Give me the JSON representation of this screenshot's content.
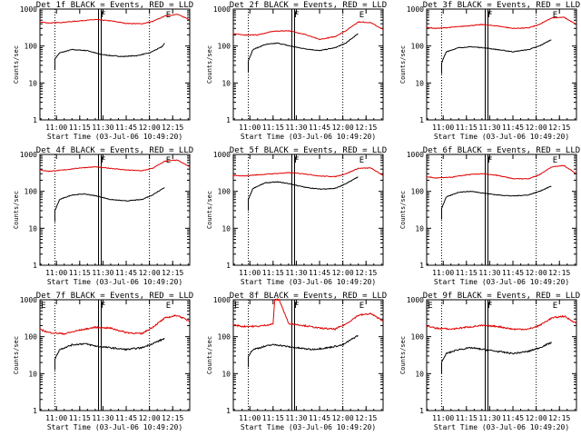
{
  "figure": {
    "x_axis_title": "Start Time (03-Jul-06 10:49:20)",
    "y_axis_title": "Counts/sec",
    "x_ticks": [
      "11:00",
      "11:15",
      "11:30",
      "11:45",
      "12:00",
      "12:15"
    ],
    "y_ticks": [
      "1",
      "10",
      "100",
      "1000"
    ]
  },
  "chart_data": [
    {
      "type": "line",
      "title": "Det 1f BLACK = Events, RED = LLD",
      "y_scale": "log",
      "ylim": [
        1,
        1000
      ],
      "xlim": [
        "10:49:20",
        "12:26"
      ],
      "grid": false,
      "markers": [
        "F",
        "E"
      ],
      "series": [
        {
          "name": "Events",
          "color": "#000000",
          "x": [
            "10:59",
            "11:02",
            "11:10",
            "11:20",
            "11:28",
            "11:35",
            "11:43",
            "11:52",
            "12:00",
            "12:08",
            "12:10"
          ],
          "y": [
            45,
            65,
            80,
            75,
            60,
            55,
            52,
            55,
            65,
            95,
            120
          ]
        },
        {
          "name": "LLD",
          "color": "#ff0000",
          "x": [
            "10:49",
            "10:55",
            "11:05",
            "11:15",
            "11:25",
            "11:35",
            "11:45",
            "11:55",
            "12:02",
            "12:10",
            "12:18",
            "12:26"
          ],
          "y": [
            450,
            420,
            440,
            480,
            520,
            480,
            410,
            400,
            460,
            650,
            720,
            520
          ]
        }
      ]
    },
    {
      "type": "line",
      "title": "Det 2f BLACK = Events, RED = LLD",
      "y_scale": "log",
      "ylim": [
        1,
        1000
      ],
      "xlim": [
        "10:49:20",
        "12:26"
      ],
      "grid": false,
      "markers": [
        "F",
        "E"
      ],
      "series": [
        {
          "name": "Events",
          "color": "#000000",
          "x": [
            "10:59",
            "11:02",
            "11:10",
            "11:18",
            "11:26",
            "11:35",
            "11:45",
            "11:55",
            "12:02",
            "12:10"
          ],
          "y": [
            40,
            80,
            110,
            120,
            100,
            85,
            75,
            90,
            120,
            220
          ]
        },
        {
          "name": "LLD",
          "color": "#ff0000",
          "x": [
            "10:49",
            "10:55",
            "11:05",
            "11:15",
            "11:25",
            "11:35",
            "11:45",
            "11:55",
            "12:02",
            "12:10",
            "12:18",
            "12:26"
          ],
          "y": [
            220,
            200,
            200,
            250,
            260,
            210,
            150,
            180,
            260,
            450,
            430,
            280
          ]
        }
      ]
    },
    {
      "type": "line",
      "title": "Det 3f BLACK = Events, RED = LLD",
      "y_scale": "log",
      "ylim": [
        1,
        1000
      ],
      "xlim": [
        "10:49:20",
        "12:26"
      ],
      "grid": false,
      "markers": [
        "F",
        "E"
      ],
      "series": [
        {
          "name": "Events",
          "color": "#000000",
          "x": [
            "10:59",
            "11:02",
            "11:10",
            "11:18",
            "11:26",
            "11:35",
            "11:45",
            "11:55",
            "12:02",
            "12:10"
          ],
          "y": [
            35,
            70,
            90,
            95,
            90,
            80,
            70,
            80,
            100,
            150
          ]
        },
        {
          "name": "LLD",
          "color": "#ff0000",
          "x": [
            "10:49",
            "10:55",
            "11:05",
            "11:15",
            "11:25",
            "11:35",
            "11:45",
            "11:55",
            "12:02",
            "12:10",
            "12:18",
            "12:26"
          ],
          "y": [
            320,
            300,
            320,
            350,
            380,
            350,
            300,
            310,
            380,
            580,
            600,
            380
          ]
        }
      ]
    },
    {
      "type": "line",
      "title": "Det 4f BLACK = Events, RED = LLD",
      "y_scale": "log",
      "ylim": [
        1,
        1000
      ],
      "xlim": [
        "10:49:20",
        "12:26"
      ],
      "grid": false,
      "markers": [
        "F",
        "E"
      ],
      "series": [
        {
          "name": "Events",
          "color": "#000000",
          "x": [
            "10:59",
            "11:02",
            "11:10",
            "11:18",
            "11:26",
            "11:35",
            "11:45",
            "11:55",
            "12:02",
            "12:10"
          ],
          "y": [
            30,
            60,
            80,
            85,
            75,
            60,
            55,
            60,
            80,
            130
          ]
        },
        {
          "name": "LLD",
          "color": "#ff0000",
          "x": [
            "10:49",
            "10:55",
            "11:05",
            "11:15",
            "11:25",
            "11:35",
            "11:45",
            "11:55",
            "12:02",
            "12:10",
            "12:18",
            "12:26"
          ],
          "y": [
            380,
            350,
            380,
            430,
            460,
            420,
            380,
            360,
            420,
            660,
            700,
            460
          ]
        }
      ]
    },
    {
      "type": "line",
      "title": "Det 5f BLACK = Events, RED = LLD",
      "y_scale": "log",
      "ylim": [
        1,
        1000
      ],
      "xlim": [
        "10:49:20",
        "12:26"
      ],
      "grid": false,
      "markers": [
        "F",
        "E"
      ],
      "series": [
        {
          "name": "Events",
          "color": "#000000",
          "x": [
            "10:59",
            "11:02",
            "11:10",
            "11:18",
            "11:26",
            "11:35",
            "11:45",
            "11:55",
            "12:02",
            "12:10"
          ],
          "y": [
            60,
            120,
            170,
            180,
            160,
            130,
            115,
            120,
            160,
            250
          ]
        },
        {
          "name": "LLD",
          "color": "#ff0000",
          "x": [
            "10:49",
            "10:55",
            "11:05",
            "11:15",
            "11:25",
            "11:35",
            "11:45",
            "11:55",
            "12:02",
            "12:10",
            "12:18",
            "12:26"
          ],
          "y": [
            270,
            260,
            280,
            300,
            320,
            300,
            260,
            250,
            300,
            420,
            430,
            270
          ]
        }
      ]
    },
    {
      "type": "line",
      "title": "Det 6f BLACK = Events, RED = LLD",
      "y_scale": "log",
      "ylim": [
        1,
        1000
      ],
      "xlim": [
        "10:49:20",
        "12:26"
      ],
      "grid": false,
      "markers": [
        "F",
        "E"
      ],
      "series": [
        {
          "name": "Events",
          "color": "#000000",
          "x": [
            "10:59",
            "11:02",
            "11:10",
            "11:18",
            "11:26",
            "11:35",
            "11:45",
            "11:55",
            "12:02",
            "12:10"
          ],
          "y": [
            35,
            70,
            95,
            100,
            90,
            80,
            75,
            80,
            100,
            140
          ]
        },
        {
          "name": "LLD",
          "color": "#ff0000",
          "x": [
            "10:49",
            "10:55",
            "11:05",
            "11:15",
            "11:25",
            "11:35",
            "11:45",
            "11:55",
            "12:02",
            "12:10",
            "12:18",
            "12:26"
          ],
          "y": [
            250,
            230,
            240,
            280,
            300,
            270,
            220,
            220,
            280,
            460,
            500,
            300
          ]
        }
      ]
    },
    {
      "type": "line",
      "title": "Det 7f BLACK = Events, RED = LLD",
      "y_scale": "log",
      "ylim": [
        1,
        1000
      ],
      "xlim": [
        "10:49:20",
        "12:26"
      ],
      "grid": false,
      "markers": [
        "E",
        "F",
        "E"
      ],
      "series": [
        {
          "name": "Events",
          "color": "#000000",
          "x": [
            "10:59",
            "11:02",
            "11:10",
            "11:18",
            "11:26",
            "11:35",
            "11:45",
            "11:55",
            "12:02",
            "12:10"
          ],
          "y": [
            25,
            45,
            60,
            65,
            55,
            50,
            45,
            50,
            65,
            90
          ]
        },
        {
          "name": "LLD",
          "color": "#ff0000",
          "x": [
            "10:49",
            "10:55",
            "11:05",
            "11:15",
            "11:25",
            "11:35",
            "11:45",
            "11:55",
            "12:02",
            "12:10",
            "12:18",
            "12:26"
          ],
          "y": [
            160,
            130,
            120,
            150,
            180,
            170,
            130,
            120,
            180,
            320,
            380,
            260
          ]
        }
      ]
    },
    {
      "type": "line",
      "title": "Det 8f BLACK = Events, RED = LLD",
      "y_scale": "log",
      "ylim": [
        1,
        1000
      ],
      "xlim": [
        "10:49:20",
        "12:26"
      ],
      "grid": false,
      "markers": [
        "E",
        "F",
        "E"
      ],
      "series": [
        {
          "name": "Events",
          "color": "#000000",
          "x": [
            "10:59",
            "11:02",
            "11:10",
            "11:14",
            "11:18",
            "11:23",
            "11:30",
            "11:40",
            "11:50",
            "12:00",
            "12:10"
          ],
          "y": [
            30,
            45,
            55,
            60,
            60,
            55,
            50,
            45,
            50,
            60,
            110
          ]
        },
        {
          "name": "LLD",
          "color": "#ff0000",
          "x": [
            "10:49",
            "10:55",
            "11:05",
            "11:15",
            "11:16",
            "11:19",
            "11:25",
            "11:35",
            "11:45",
            "11:55",
            "12:02",
            "12:10",
            "12:18",
            "12:26"
          ],
          "y": [
            210,
            190,
            190,
            220,
            1000,
            1000,
            230,
            200,
            170,
            160,
            220,
            380,
            420,
            270
          ]
        }
      ]
    },
    {
      "type": "line",
      "title": "Det 9f BLACK = Events, RED = LLD",
      "y_scale": "log",
      "ylim": [
        1,
        1000
      ],
      "xlim": [
        "10:49:20",
        "12:26"
      ],
      "grid": false,
      "markers": [
        "E",
        "F",
        "E"
      ],
      "series": [
        {
          "name": "Events",
          "color": "#000000",
          "x": [
            "10:59",
            "11:02",
            "11:10",
            "11:18",
            "11:26",
            "11:35",
            "11:45",
            "11:55",
            "12:02",
            "12:10"
          ],
          "y": [
            20,
            35,
            45,
            50,
            45,
            40,
            35,
            40,
            50,
            70
          ]
        },
        {
          "name": "LLD",
          "color": "#ff0000",
          "x": [
            "10:49",
            "10:55",
            "11:05",
            "11:15",
            "11:25",
            "11:35",
            "11:45",
            "11:55",
            "12:02",
            "12:10",
            "12:18",
            "12:26"
          ],
          "y": [
            200,
            170,
            160,
            180,
            200,
            190,
            160,
            160,
            200,
            320,
            360,
            230
          ]
        }
      ]
    }
  ]
}
